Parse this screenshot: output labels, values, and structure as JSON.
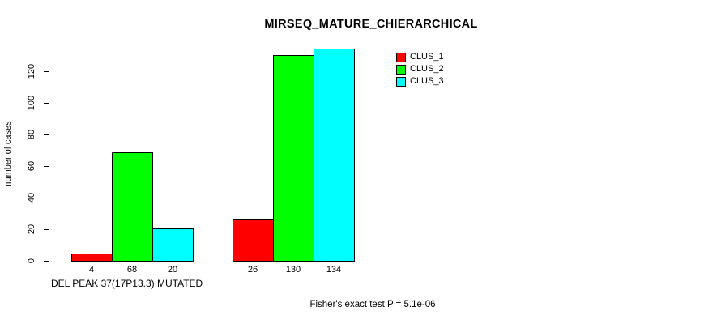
{
  "chart_data": {
    "type": "bar",
    "title": "MIRSEQ_MATURE_CHIERARCHICAL",
    "ylabel": "number of cases",
    "xlabel": "",
    "ylim": [
      0,
      140
    ],
    "yticks": [
      0,
      20,
      40,
      60,
      80,
      100,
      120
    ],
    "grid": false,
    "legend_position": "top-right",
    "group_labels": [
      "DEL PEAK 37(17P13.3) MUTATED",
      ""
    ],
    "series": [
      {
        "name": "CLUS_1",
        "color": "#ff0000",
        "values": [
          4,
          26
        ]
      },
      {
        "name": "CLUS_2",
        "color": "#00ff00",
        "values": [
          68,
          130
        ]
      },
      {
        "name": "CLUS_3",
        "color": "#00ffff",
        "values": [
          20,
          134
        ]
      }
    ],
    "bar_value_labels": [
      [
        "4",
        "68",
        "20"
      ],
      [
        "26",
        "130",
        "134"
      ]
    ]
  },
  "footer": {
    "text": "Fisher's exact test P = 5.1e-06"
  },
  "colors": {
    "background": "#ffffff",
    "axis": "#000000",
    "text": "#000000"
  }
}
